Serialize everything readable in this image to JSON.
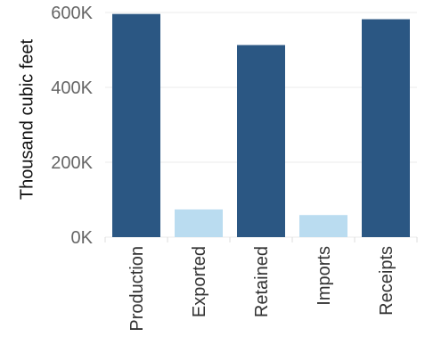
{
  "chart_data": {
    "type": "bar",
    "title": "",
    "xlabel": "",
    "ylabel": "Thousand cubic feet",
    "categories": [
      "Production",
      "Exported",
      "Retained",
      "Imports",
      "Receipts"
    ],
    "values": [
      596000,
      74000,
      513000,
      59000,
      582000
    ],
    "bar_colors": [
      "#2b5783",
      "#badcf0",
      "#2b5783",
      "#badcf0",
      "#2b5783"
    ],
    "ylim": [
      0,
      600000
    ],
    "yticks": [
      0,
      200000,
      400000,
      600000
    ],
    "ytick_labels": [
      "0K",
      "200K",
      "400K",
      "600K"
    ],
    "grid": "horizontal",
    "legend": "none"
  }
}
